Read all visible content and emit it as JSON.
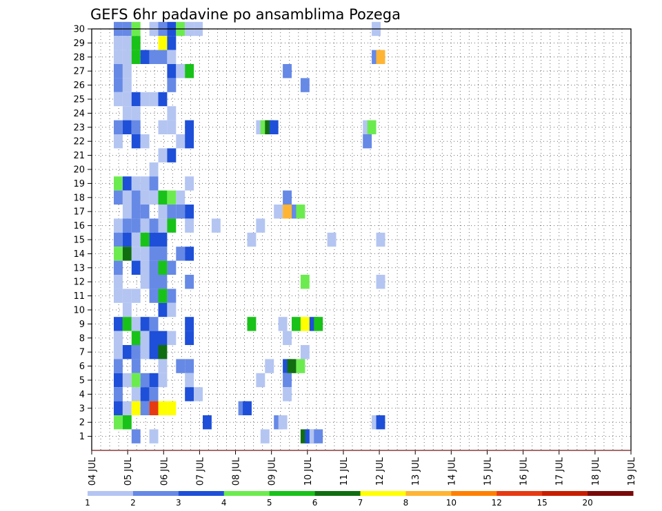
{
  "chart_data": {
    "type": "heatmap",
    "title": "GEFS 6hr padavine po ansamblima Pozega",
    "xlabel": "",
    "ylabel": "",
    "x_unit": "hours since 04 JUL 00Z (6-hourly steps)",
    "x_range_hours": [
      0,
      360
    ],
    "x_ticks": [
      "04 JUL",
      "05 JUL",
      "06 JUL",
      "07 JUL",
      "08 JUL",
      "09 JUL",
      "10 JUL",
      "11 JUL",
      "12 JUL",
      "13 JUL",
      "14 JUL",
      "15 JUL",
      "16 JUL",
      "17 JUL",
      "18 JUL",
      "19 JUL"
    ],
    "y_range": [
      0,
      30
    ],
    "y_ticks": [
      1,
      2,
      3,
      4,
      5,
      6,
      7,
      8,
      9,
      10,
      11,
      12,
      13,
      14,
      15,
      16,
      17,
      18,
      19,
      20,
      21,
      22,
      23,
      24,
      25,
      26,
      27,
      28,
      29,
      30
    ],
    "grid": true,
    "colorbar": {
      "labels": [
        "1",
        "2",
        "3",
        "4",
        "5",
        "6",
        "7",
        "8",
        "10",
        "12",
        "15",
        "20"
      ],
      "colors": [
        "#b4c5f2",
        "#6689e6",
        "#1e4fd8",
        "#6ceb4f",
        "#19c219",
        "#106e10",
        "#ffff00",
        "#ffb533",
        "#ff8000",
        "#e63a12",
        "#c81e00",
        "#7a0a0a"
      ]
    },
    "cells": [
      [
        30,
        0,
        1,
        "#6689e6"
      ],
      [
        30,
        1,
        1,
        "#6689e6"
      ],
      [
        30,
        2,
        1,
        "#6ceb4f"
      ],
      [
        30,
        4,
        1,
        "#b4c5f2"
      ],
      [
        30,
        5,
        1,
        "#6689e6"
      ],
      [
        30,
        6,
        1,
        "#1e4fd8"
      ],
      [
        30,
        7,
        1,
        "#6ceb4f"
      ],
      [
        30,
        8,
        1,
        "#b4c5f2"
      ],
      [
        30,
        9,
        1,
        "#b4c5f2"
      ],
      [
        30,
        29,
        1,
        "#b4c5f2"
      ],
      [
        29,
        0,
        1,
        "#b4c5f2"
      ],
      [
        29,
        1,
        1,
        "#b4c5f2"
      ],
      [
        29,
        2,
        1,
        "#19c219"
      ],
      [
        29,
        5,
        1,
        "#ffff00"
      ],
      [
        29,
        6,
        1,
        "#1e4fd8"
      ],
      [
        28,
        0,
        1,
        "#b4c5f2"
      ],
      [
        28,
        1,
        1,
        "#b4c5f2"
      ],
      [
        28,
        2,
        1,
        "#19c219"
      ],
      [
        28,
        3,
        1,
        "#1e4fd8"
      ],
      [
        28,
        4,
        1,
        "#6689e6"
      ],
      [
        28,
        5,
        1,
        "#6689e6"
      ],
      [
        28,
        6,
        1,
        "#b4c5f2"
      ],
      [
        28,
        29,
        1,
        "#6689e6"
      ],
      [
        28,
        29.5,
        1,
        "#ffb533"
      ],
      [
        27,
        0,
        1,
        "#6689e6"
      ],
      [
        27,
        1,
        1,
        "#b4c5f2"
      ],
      [
        27,
        6,
        1,
        "#1e4fd8"
      ],
      [
        27,
        7,
        1,
        "#b4c5f2"
      ],
      [
        27,
        8,
        1,
        "#19c219"
      ],
      [
        27,
        19,
        1,
        "#6689e6"
      ],
      [
        26,
        0,
        1,
        "#6689e6"
      ],
      [
        26,
        1,
        1,
        "#b4c5f2"
      ],
      [
        26,
        6,
        1,
        "#6689e6"
      ],
      [
        26,
        21,
        1,
        "#6689e6"
      ],
      [
        25,
        0,
        1,
        "#b4c5f2"
      ],
      [
        25,
        1,
        1,
        "#b4c5f2"
      ],
      [
        25,
        2,
        1,
        "#1e4fd8"
      ],
      [
        25,
        3,
        1,
        "#b4c5f2"
      ],
      [
        25,
        4,
        1,
        "#b4c5f2"
      ],
      [
        25,
        5,
        1,
        "#1e4fd8"
      ],
      [
        24,
        1,
        1,
        "#b4c5f2"
      ],
      [
        24,
        2,
        1,
        "#b4c5f2"
      ],
      [
        24,
        6,
        1,
        "#b4c5f2"
      ],
      [
        23,
        0,
        1,
        "#6689e6"
      ],
      [
        23,
        1,
        1,
        "#1e4fd8"
      ],
      [
        23,
        2,
        1,
        "#6689e6"
      ],
      [
        23,
        5,
        1,
        "#b4c5f2"
      ],
      [
        23,
        6,
        1,
        "#b4c5f2"
      ],
      [
        23,
        8,
        1,
        "#1e4fd8"
      ],
      [
        23,
        16,
        1,
        "#b4c5f2"
      ],
      [
        23,
        16.5,
        1,
        "#6ceb4f"
      ],
      [
        23,
        17,
        1,
        "#106e10"
      ],
      [
        23,
        17.5,
        1,
        "#1e4fd8"
      ],
      [
        23,
        28,
        1,
        "#b4c5f2"
      ],
      [
        23,
        28.5,
        1,
        "#6ceb4f"
      ],
      [
        22,
        0,
        1,
        "#b4c5f2"
      ],
      [
        22,
        2,
        1,
        "#1e4fd8"
      ],
      [
        22,
        3,
        1,
        "#b4c5f2"
      ],
      [
        22,
        7,
        1,
        "#b4c5f2"
      ],
      [
        22,
        8,
        1,
        "#1e4fd8"
      ],
      [
        22,
        28,
        1,
        "#6689e6"
      ],
      [
        21,
        5,
        1,
        "#b4c5f2"
      ],
      [
        21,
        6,
        1,
        "#1e4fd8"
      ],
      [
        20,
        4,
        1,
        "#b4c5f2"
      ],
      [
        19,
        0,
        1,
        "#6ceb4f"
      ],
      [
        19,
        1,
        1,
        "#1e4fd8"
      ],
      [
        19,
        2,
        1,
        "#b4c5f2"
      ],
      [
        19,
        3,
        1,
        "#b4c5f2"
      ],
      [
        19,
        4,
        1,
        "#6689e6"
      ],
      [
        19,
        8,
        1,
        "#b4c5f2"
      ],
      [
        18,
        0,
        1,
        "#6689e6"
      ],
      [
        18,
        1,
        1,
        "#b4c5f2"
      ],
      [
        18,
        2,
        1,
        "#6689e6"
      ],
      [
        18,
        3,
        1,
        "#b4c5f2"
      ],
      [
        18,
        4,
        1,
        "#b4c5f2"
      ],
      [
        18,
        5,
        1,
        "#19c219"
      ],
      [
        18,
        6,
        1,
        "#6ceb4f"
      ],
      [
        18,
        7,
        1,
        "#b4c5f2"
      ],
      [
        18,
        19,
        1,
        "#6689e6"
      ],
      [
        17,
        1,
        1,
        "#b4c5f2"
      ],
      [
        17,
        2,
        1,
        "#6689e6"
      ],
      [
        17,
        3,
        1,
        "#6689e6"
      ],
      [
        17,
        5,
        1,
        "#b4c5f2"
      ],
      [
        17,
        6,
        1,
        "#6689e6"
      ],
      [
        17,
        7,
        1,
        "#6689e6"
      ],
      [
        17,
        8,
        1,
        "#1e4fd8"
      ],
      [
        17,
        18,
        1,
        "#b4c5f2"
      ],
      [
        17,
        19,
        1,
        "#ffb533"
      ],
      [
        17,
        20,
        1,
        "#6689e6"
      ],
      [
        17,
        20.5,
        1,
        "#6ceb4f"
      ],
      [
        16,
        0,
        1,
        "#b4c5f2"
      ],
      [
        16,
        1,
        1,
        "#6689e6"
      ],
      [
        16,
        2,
        1,
        "#6689e6"
      ],
      [
        16,
        3,
        1,
        "#b4c5f2"
      ],
      [
        16,
        4,
        1,
        "#6689e6"
      ],
      [
        16,
        5,
        1,
        "#b4c5f2"
      ],
      [
        16,
        6,
        1,
        "#19c219"
      ],
      [
        16,
        8,
        1,
        "#b4c5f2"
      ],
      [
        16,
        11,
        1,
        "#b4c5f2"
      ],
      [
        16,
        16,
        1,
        "#b4c5f2"
      ],
      [
        15,
        0,
        1,
        "#6689e6"
      ],
      [
        15,
        1,
        1,
        "#1e4fd8"
      ],
      [
        15,
        2,
        1,
        "#b4c5f2"
      ],
      [
        15,
        3,
        1,
        "#19c219"
      ],
      [
        15,
        4,
        1,
        "#1e4fd8"
      ],
      [
        15,
        5,
        1,
        "#1e4fd8"
      ],
      [
        15,
        15,
        1,
        "#b4c5f2"
      ],
      [
        15,
        24,
        1,
        "#b4c5f2"
      ],
      [
        15,
        29.5,
        1,
        "#b4c5f2"
      ],
      [
        14,
        0,
        1,
        "#6ceb4f"
      ],
      [
        14,
        1,
        1,
        "#106e10"
      ],
      [
        14,
        2,
        1,
        "#b4c5f2"
      ],
      [
        14,
        3,
        1,
        "#b4c5f2"
      ],
      [
        14,
        4,
        1,
        "#6689e6"
      ],
      [
        14,
        5,
        1,
        "#6689e6"
      ],
      [
        14,
        7,
        1,
        "#6689e6"
      ],
      [
        14,
        8,
        1,
        "#1e4fd8"
      ],
      [
        13,
        0,
        1,
        "#6689e6"
      ],
      [
        13,
        2,
        1,
        "#1e4fd8"
      ],
      [
        13,
        3,
        1,
        "#b4c5f2"
      ],
      [
        13,
        4,
        1,
        "#6689e6"
      ],
      [
        13,
        5,
        1,
        "#19c219"
      ],
      [
        13,
        6,
        1,
        "#6689e6"
      ],
      [
        12,
        0,
        1,
        "#b4c5f2"
      ],
      [
        12,
        3,
        1,
        "#b4c5f2"
      ],
      [
        12,
        4,
        1,
        "#6689e6"
      ],
      [
        12,
        5,
        1,
        "#6689e6"
      ],
      [
        12,
        8,
        1,
        "#6689e6"
      ],
      [
        12,
        21,
        1,
        "#6ceb4f"
      ],
      [
        12,
        29.5,
        1,
        "#b4c5f2"
      ],
      [
        11,
        0,
        1,
        "#b4c5f2"
      ],
      [
        11,
        1,
        1,
        "#b4c5f2"
      ],
      [
        11,
        2,
        1,
        "#b4c5f2"
      ],
      [
        11,
        4,
        1,
        "#6689e6"
      ],
      [
        11,
        5,
        1,
        "#19c219"
      ],
      [
        11,
        6,
        1,
        "#6689e6"
      ],
      [
        10,
        1,
        1,
        "#b4c5f2"
      ],
      [
        10,
        5,
        1,
        "#1e4fd8"
      ],
      [
        10,
        6,
        1,
        "#b4c5f2"
      ],
      [
        9,
        0,
        1,
        "#1e4fd8"
      ],
      [
        9,
        1,
        1,
        "#19c219"
      ],
      [
        9,
        2,
        1,
        "#b4c5f2"
      ],
      [
        9,
        3,
        1,
        "#1e4fd8"
      ],
      [
        9,
        4,
        1,
        "#6689e6"
      ],
      [
        9,
        8,
        1,
        "#1e4fd8"
      ],
      [
        9,
        15,
        1,
        "#19c219"
      ],
      [
        9,
        18.5,
        1,
        "#b4c5f2"
      ],
      [
        9,
        20,
        1,
        "#19c219"
      ],
      [
        9,
        21,
        1,
        "#ffff00"
      ],
      [
        9,
        22,
        1,
        "#1e4fd8"
      ],
      [
        9,
        22.5,
        1,
        "#19c219"
      ],
      [
        8,
        0,
        1,
        "#b4c5f2"
      ],
      [
        8,
        2,
        1,
        "#19c219"
      ],
      [
        8,
        3,
        1,
        "#b4c5f2"
      ],
      [
        8,
        4,
        1,
        "#1e4fd8"
      ],
      [
        8,
        5,
        1,
        "#1e4fd8"
      ],
      [
        8,
        6,
        1,
        "#b4c5f2"
      ],
      [
        8,
        8,
        1,
        "#1e4fd8"
      ],
      [
        8,
        19,
        1,
        "#b4c5f2"
      ],
      [
        7,
        0,
        1,
        "#b4c5f2"
      ],
      [
        7,
        1,
        1,
        "#1e4fd8"
      ],
      [
        7,
        2,
        1,
        "#6689e6"
      ],
      [
        7,
        3,
        1,
        "#b4c5f2"
      ],
      [
        7,
        4,
        1,
        "#1e4fd8"
      ],
      [
        7,
        5,
        1,
        "#106e10"
      ],
      [
        7,
        21,
        1,
        "#b4c5f2"
      ],
      [
        6,
        0,
        1,
        "#6689e6"
      ],
      [
        6,
        2,
        1,
        "#6689e6"
      ],
      [
        6,
        5,
        1,
        "#b4c5f2"
      ],
      [
        6,
        7,
        1,
        "#6689e6"
      ],
      [
        6,
        8,
        1,
        "#6689e6"
      ],
      [
        6,
        17,
        1,
        "#b4c5f2"
      ],
      [
        6,
        19,
        1,
        "#1e4fd8"
      ],
      [
        6,
        19.5,
        1,
        "#106e10"
      ],
      [
        6,
        20.5,
        1,
        "#6ceb4f"
      ],
      [
        5,
        0,
        1,
        "#1e4fd8"
      ],
      [
        5,
        1,
        1,
        "#b4c5f2"
      ],
      [
        5,
        2,
        1,
        "#6ceb4f"
      ],
      [
        5,
        3,
        1,
        "#6689e6"
      ],
      [
        5,
        4,
        1,
        "#1e4fd8"
      ],
      [
        5,
        5,
        1,
        "#b4c5f2"
      ],
      [
        5,
        8,
        1,
        "#b4c5f2"
      ],
      [
        5,
        16,
        1,
        "#b4c5f2"
      ],
      [
        5,
        19,
        1,
        "#6689e6"
      ],
      [
        4,
        0,
        1,
        "#6689e6"
      ],
      [
        4,
        2,
        1,
        "#b4c5f2"
      ],
      [
        4,
        3,
        1,
        "#1e4fd8"
      ],
      [
        4,
        4,
        1,
        "#6689e6"
      ],
      [
        4,
        8,
        1,
        "#1e4fd8"
      ],
      [
        4,
        9,
        1,
        "#b4c5f2"
      ],
      [
        4,
        19,
        1,
        "#b4c5f2"
      ],
      [
        3,
        0,
        1,
        "#1e4fd8"
      ],
      [
        3,
        1,
        1,
        "#b4c5f2"
      ],
      [
        3,
        2,
        1,
        "#ffff00"
      ],
      [
        3,
        3,
        1,
        "#6689e6"
      ],
      [
        3,
        4,
        1,
        "#e63a12"
      ],
      [
        3,
        5,
        1,
        "#ffff00"
      ],
      [
        3,
        6,
        1,
        "#ffff00"
      ],
      [
        3,
        14,
        1,
        "#6689e6"
      ],
      [
        3,
        14.5,
        1,
        "#1e4fd8"
      ],
      [
        2,
        0,
        1,
        "#6ceb4f"
      ],
      [
        2,
        1,
        1,
        "#19c219"
      ],
      [
        2,
        10,
        1,
        "#1e4fd8"
      ],
      [
        2,
        18,
        1,
        "#6689e6"
      ],
      [
        2,
        18.5,
        1,
        "#b4c5f2"
      ],
      [
        2,
        29,
        1,
        "#b4c5f2"
      ],
      [
        2,
        29.5,
        1,
        "#1e4fd8"
      ],
      [
        1,
        2,
        1,
        "#6689e6"
      ],
      [
        1,
        4,
        1,
        "#b4c5f2"
      ],
      [
        1,
        16.5,
        1,
        "#b4c5f2"
      ],
      [
        1,
        21,
        1,
        "#106e10"
      ],
      [
        1,
        21.5,
        1,
        "#1e4fd8"
      ],
      [
        1,
        22,
        1,
        "#b4c5f2"
      ],
      [
        1,
        22.5,
        1,
        "#6689e6"
      ]
    ]
  }
}
